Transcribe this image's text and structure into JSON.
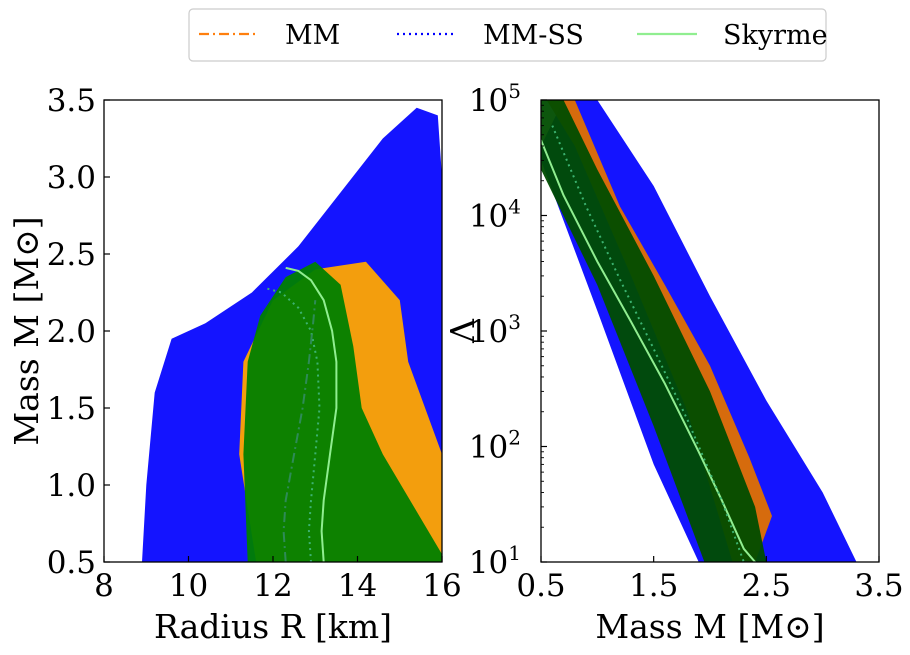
{
  "legend": {
    "items": [
      {
        "label": "MM",
        "color": "#ff7f0e",
        "dash": "dashdot"
      },
      {
        "label": "MM-SS",
        "color": "#0000ff",
        "dash": "dotted"
      },
      {
        "label": "Skyrme",
        "color": "#90ee90",
        "dash": "solid"
      }
    ]
  },
  "chart_data": [
    {
      "type": "line",
      "xlabel": "Radius R [km]",
      "ylabel": "Mass M [M⊙]",
      "xlim": [
        8,
        16
      ],
      "ylim": [
        0.5,
        3.5
      ],
      "xticks": [
        "8",
        "10",
        "12",
        "14",
        "16"
      ],
      "yticks": [
        "0.5",
        "1.0",
        "1.5",
        "2.0",
        "2.5",
        "3.0",
        "3.5"
      ],
      "bands": [
        {
          "name": "MM-SS",
          "color": "#0000ff",
          "outline": [
            [
              8.9,
              0.5
            ],
            [
              9.0,
              1.0
            ],
            [
              9.2,
              1.6
            ],
            [
              9.6,
              1.95
            ],
            [
              10.4,
              2.05
            ],
            [
              11.5,
              2.25
            ],
            [
              12.6,
              2.55
            ],
            [
              13.6,
              2.9
            ],
            [
              14.6,
              3.25
            ],
            [
              15.4,
              3.45
            ],
            [
              15.9,
              3.4
            ],
            [
              16.0,
              3.0
            ],
            [
              16.0,
              0.5
            ]
          ]
        },
        {
          "name": "MM",
          "color": "#ffa500",
          "outline": [
            [
              11.6,
              0.5
            ],
            [
              11.2,
              1.2
            ],
            [
              11.3,
              1.8
            ],
            [
              12.0,
              2.2
            ],
            [
              13.0,
              2.4
            ],
            [
              14.2,
              2.45
            ],
            [
              15.0,
              2.2
            ],
            [
              15.2,
              1.8
            ],
            [
              16.0,
              1.2
            ],
            [
              16.0,
              0.5
            ]
          ]
        },
        {
          "name": "Skyrme",
          "color": "#008000",
          "outline": [
            [
              11.4,
              0.5
            ],
            [
              11.3,
              1.2
            ],
            [
              11.4,
              1.8
            ],
            [
              11.7,
              2.1
            ],
            [
              12.3,
              2.35
            ],
            [
              13.0,
              2.45
            ],
            [
              13.6,
              2.3
            ],
            [
              13.9,
              1.9
            ],
            [
              14.1,
              1.5
            ],
            [
              14.6,
              1.2
            ],
            [
              16.0,
              0.55
            ],
            [
              16.0,
              0.5
            ]
          ]
        }
      ],
      "series": [
        {
          "name": "Skyrme",
          "color": "#90ee90",
          "dash": "solid",
          "x": [
            13.2,
            13.15,
            13.2,
            13.35,
            13.5,
            13.5,
            13.4,
            13.2,
            12.9,
            12.6,
            12.3
          ],
          "y": [
            0.5,
            0.7,
            0.9,
            1.2,
            1.5,
            1.8,
            2.0,
            2.2,
            2.33,
            2.39,
            2.41
          ]
        },
        {
          "name": "MM-SS",
          "color": "#3cb371",
          "dash": "dotted",
          "x": [
            12.9,
            12.85,
            12.9,
            13.0,
            13.1,
            13.05,
            12.9,
            12.6,
            12.2,
            11.8
          ],
          "y": [
            0.5,
            0.7,
            0.9,
            1.2,
            1.5,
            1.8,
            2.0,
            2.15,
            2.25,
            2.28
          ]
        },
        {
          "name": "MM",
          "color": "#2e8b57",
          "dash": "dashdot",
          "x": [
            12.3,
            12.25,
            12.3,
            12.5,
            12.7,
            12.85,
            12.95,
            13.0
          ],
          "y": [
            0.5,
            0.7,
            0.9,
            1.2,
            1.5,
            1.8,
            2.05,
            2.2
          ]
        }
      ]
    },
    {
      "type": "line",
      "xlabel": "Mass M [M⊙]",
      "ylabel": "Λ",
      "xlim": [
        0.5,
        3.5
      ],
      "ylim": [
        10,
        100000
      ],
      "yscale": "log",
      "xticks": [
        "0.5",
        "1.5",
        "2.5",
        "3.5"
      ],
      "yticks": [
        "10",
        "10",
        "10",
        "10",
        "10"
      ],
      "ytick_exponents": [
        "1",
        "2",
        "3",
        "4",
        "5"
      ],
      "bands": [
        {
          "name": "MM-SS",
          "color": "#0000ff",
          "outline": [
            [
              0.5,
              40000
            ],
            [
              0.7,
              100000
            ],
            [
              1.0,
              100000
            ],
            [
              1.5,
              18000
            ],
            [
              2.0,
              2000
            ],
            [
              2.5,
              250
            ],
            [
              3.0,
              40
            ],
            [
              3.3,
              10
            ],
            [
              1.9,
              10
            ],
            [
              1.5,
              70
            ],
            [
              1.0,
              1500
            ],
            [
              0.5,
              30000
            ]
          ]
        },
        {
          "name": "MM",
          "color": "#e07000",
          "outline": [
            [
              0.55,
              100000
            ],
            [
              0.8,
              100000
            ],
            [
              1.2,
              12000
            ],
            [
              1.6,
              2500
            ],
            [
              2.0,
              500
            ],
            [
              2.35,
              80
            ],
            [
              2.55,
              25
            ],
            [
              2.4,
              10
            ],
            [
              2.2,
              10
            ],
            [
              1.8,
              200
            ],
            [
              1.3,
              3000
            ],
            [
              0.8,
              40000
            ]
          ]
        },
        {
          "name": "Skyrme",
          "color": "#004d00",
          "outline": [
            [
              0.5,
              100000
            ],
            [
              0.7,
              100000
            ],
            [
              1.0,
              25000
            ],
            [
              1.5,
              3000
            ],
            [
              2.0,
              300
            ],
            [
              2.4,
              30
            ],
            [
              2.5,
              10
            ],
            [
              1.95,
              10
            ],
            [
              1.5,
              150
            ],
            [
              1.0,
              2500
            ],
            [
              0.5,
              25000
            ]
          ]
        }
      ],
      "series": [
        {
          "name": "Skyrme",
          "color": "#90ee90",
          "dash": "solid",
          "x": [
            0.5,
            0.7,
            1.0,
            1.3,
            1.6,
            1.9,
            2.1,
            2.3,
            2.4
          ],
          "y": [
            45000,
            15000,
            4000,
            1200,
            350,
            90,
            35,
            13,
            10
          ]
        },
        {
          "name": "MM-SS",
          "color": "#3cb371",
          "dash": "dotted",
          "x": [
            0.6,
            0.9,
            1.2,
            1.5,
            1.8,
            2.1,
            2.3
          ],
          "y": [
            60000,
            12000,
            2800,
            700,
            170,
            35,
            10
          ]
        }
      ]
    }
  ]
}
